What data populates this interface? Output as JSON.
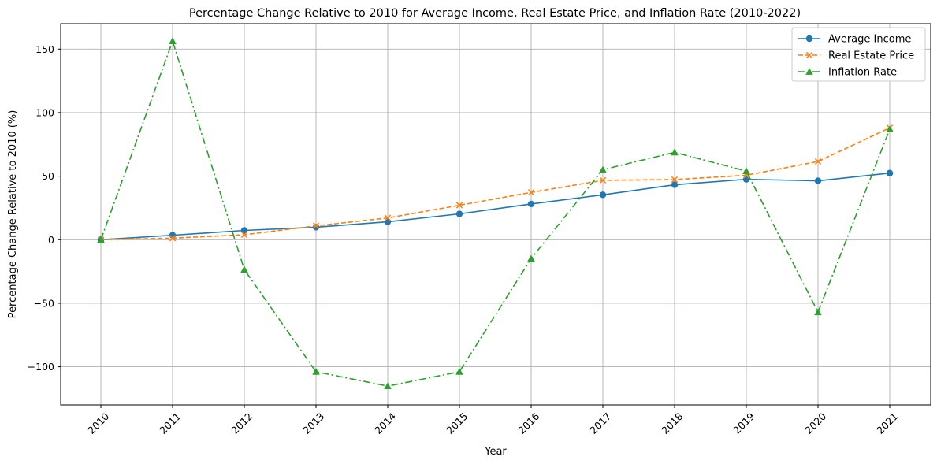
{
  "chart_data": {
    "type": "line",
    "title": "Percentage Change Relative to 2010 for Average Income, Real Estate Price, and Inflation Rate (2010-2022)",
    "xlabel": "Year",
    "ylabel": "Percentage Change Relative to 2010 (%)",
    "categories": [
      "2010",
      "2011",
      "2012",
      "2013",
      "2014",
      "2015",
      "2016",
      "2017",
      "2018",
      "2019",
      "2020",
      "2021"
    ],
    "ylim": [
      -130,
      170
    ],
    "yticks": [
      -100,
      -50,
      0,
      50,
      100,
      150
    ],
    "ytick_labels": [
      "−100",
      "−50",
      "0",
      "50",
      "100",
      "150"
    ],
    "grid": true,
    "legend_position": "top-right",
    "series": [
      {
        "name": "Average Income",
        "color": "#1f77b4",
        "line_style": "solid",
        "marker": "circle",
        "values": [
          0,
          3.5,
          7.3,
          9.8,
          14.1,
          20.3,
          28.1,
          35.3,
          43.2,
          47.5,
          46.3,
          52.4
        ]
      },
      {
        "name": "Real Estate Price",
        "color": "#ff7f0e",
        "line_style": "dashed",
        "marker": "x",
        "values": [
          0,
          1.2,
          3.9,
          10.9,
          17.1,
          27.1,
          37.2,
          46.7,
          47.3,
          50.7,
          61.5,
          88.0
        ]
      },
      {
        "name": "Inflation Rate",
        "color": "#2ca02c",
        "line_style": "dashdot",
        "marker": "triangle",
        "values": [
          0,
          156.3,
          -23.5,
          -103.9,
          -115.2,
          -103.9,
          -14.8,
          55.1,
          68.7,
          54.0,
          -57.0,
          86.9
        ]
      }
    ]
  }
}
